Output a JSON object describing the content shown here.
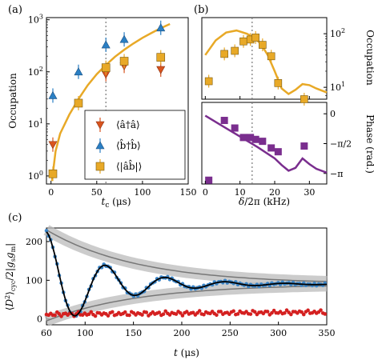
{
  "chart_data": [
    {
      "panel": "(a)",
      "type": "scatter",
      "xlabel": "t_c (μs)",
      "ylabel": "Occupation",
      "xlim": [
        -5,
        150
      ],
      "ylim": [
        0.7,
        1100
      ],
      "yscale": "log",
      "xticks": [
        0,
        50,
        100,
        150
      ],
      "yticks": [
        "10^0",
        "10^1",
        "10^2",
        "10^3"
      ],
      "vline_x": 60,
      "legend": [
        "⟨â†â⟩",
        "⟨b̂†b̂⟩",
        "⟨|âb̂|⟩"
      ],
      "legend_position": "lower-right",
      "series": [
        {
          "name": "⟨â†â⟩",
          "color": "#d9541e",
          "marker": "triangle-down",
          "x": [
            2,
            60,
            80,
            120
          ],
          "y": [
            4,
            90,
            130,
            110
          ]
        },
        {
          "name": "⟨b̂†b̂⟩",
          "color": "#2a7fc4",
          "marker": "triangle-up",
          "x": [
            2,
            30,
            60,
            80,
            120
          ],
          "y": [
            35,
            100,
            330,
            420,
            700
          ]
        },
        {
          "name": "⟨|âb̂|⟩",
          "color": "#e8a927",
          "marker": "square",
          "x": [
            2,
            30,
            60,
            80,
            120
          ],
          "y": [
            1.1,
            25,
            120,
            160,
            190
          ]
        }
      ],
      "fit_curve": {
        "color": "#e8a927",
        "x": [
          1,
          5,
          10,
          20,
          30,
          40,
          50,
          60,
          70,
          80,
          90,
          100,
          110,
          120,
          130
        ],
        "y": [
          0.8,
          3,
          6.5,
          15,
          30,
          55,
          90,
          135,
          195,
          265,
          350,
          450,
          560,
          690,
          830
        ]
      }
    },
    {
      "panel": "(b)",
      "type": "line",
      "xlabel": "δ/2π (kHz)",
      "xlim": [
        -1,
        35
      ],
      "xticks": [
        0,
        10,
        20,
        30
      ],
      "vline_x": 13.5,
      "top": {
        "ylabel": "Occupation",
        "yscale": "log",
        "ylim": [
          6,
          200
        ],
        "yticks": [
          "10^1",
          "10^2"
        ],
        "points": {
          "color": "#e8a927",
          "marker": "square",
          "x": [
            1,
            5.5,
            8.5,
            11,
            13,
            14.5,
            16.5,
            19,
            21,
            28.5
          ],
          "y": [
            13,
            42,
            48,
            72,
            78,
            85,
            62,
            38,
            12,
            6
          ]
        },
        "curve": {
          "color": "#e8a927",
          "x": [
            0,
            3,
            6,
            9,
            12,
            14,
            16,
            18,
            20,
            22,
            24,
            26,
            28,
            30,
            32,
            35
          ],
          "y": [
            40,
            75,
            105,
            115,
            100,
            85,
            65,
            40,
            20,
            9.5,
            7.5,
            9,
            11.5,
            11,
            9.5,
            8
          ]
        }
      },
      "bottom": {
        "ylabel": "Phase (rad.)",
        "ylim": [
          -3.7,
          0.6
        ],
        "yticks": [
          "0",
          "−π/2",
          "−π"
        ],
        "points": {
          "color": "#7a2e8e",
          "marker": "square",
          "x": [
            1,
            5.5,
            8.5,
            11,
            13,
            14.5,
            16.5,
            19,
            21,
            28.5
          ],
          "y": [
            -3.5,
            -0.35,
            -0.75,
            -1.25,
            -1.25,
            -1.35,
            -1.45,
            -1.8,
            -2.0,
            -1.7
          ]
        },
        "curve": {
          "color": "#7a2e8e",
          "x": [
            0,
            5,
            10,
            15,
            20,
            22,
            24,
            26,
            28,
            30,
            32,
            35
          ],
          "y": [
            -0.1,
            -0.65,
            -1.2,
            -1.75,
            -2.35,
            -2.7,
            -3.0,
            -2.85,
            -2.35,
            -2.65,
            -2.9,
            -3.1
          ]
        }
      }
    },
    {
      "panel": "(c)",
      "type": "scatter",
      "xlabel": "t (μs)",
      "ylabel": "⟨D²⟩_cyc / 2|g_s g_m|",
      "xlim": [
        60,
        350
      ],
      "ylim": [
        -15,
        235
      ],
      "xticks": [
        60,
        100,
        150,
        200,
        250,
        300,
        350
      ],
      "yticks": [
        0,
        100,
        200
      ],
      "series": [
        {
          "name": "",
          "color": "#3a85c8",
          "marker": "circle",
          "kind": "oscillating",
          "x": [
            60,
            70,
            80,
            90,
            100,
            110,
            120,
            125,
            130,
            140,
            150,
            160,
            170,
            180,
            185,
            190,
            200,
            210,
            220,
            230,
            240,
            250,
            255,
            260,
            270,
            280,
            290,
            300,
            310,
            320,
            330,
            340,
            350
          ],
          "y": [
            225,
            190,
            80,
            38,
            85,
            140,
            160,
            155,
            135,
            85,
            55,
            80,
            110,
            125,
            123,
            110,
            78,
            62,
            78,
            108,
            115,
            122,
            118,
            100,
            80,
            78,
            88,
            108,
            98,
            88,
            94,
            96,
            92
          ]
        },
        {
          "name": "",
          "color": "#d42020",
          "marker": "circle",
          "kind": "flat",
          "x": [
            60,
            80,
            100,
            120,
            140,
            160,
            180,
            200,
            220,
            240,
            260,
            280,
            300,
            320,
            340,
            350
          ],
          "y": [
            10,
            12,
            15,
            18,
            12,
            13,
            16,
            14,
            11,
            12,
            18,
            15,
            22,
            18,
            25,
            24
          ]
        }
      ],
      "fit_black": {
        "x0": 60,
        "mean": 90,
        "amp0": 135,
        "decay": 60,
        "period": 62
      },
      "envelope": {
        "upper": "decaying from ~230",
        "lower": "rising from ~-5",
        "color": "#bbbbbb"
      }
    }
  ]
}
